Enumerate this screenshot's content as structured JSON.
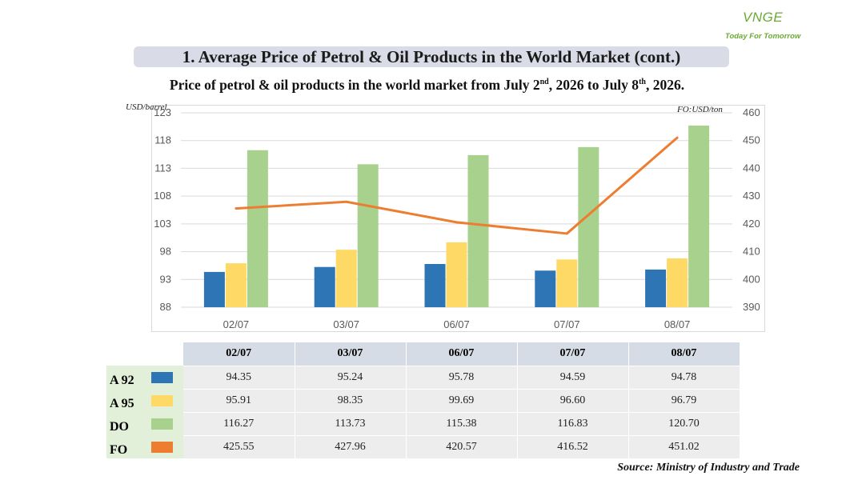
{
  "logo": {
    "word": "VNGE",
    "tagline": "Today For Tomorrow",
    "color": "#6aab32"
  },
  "header": {
    "title": "1. Average Price of Petrol & Oil Products in the World Market (cont.)"
  },
  "subtitle": {
    "part1": "Price of petrol & oil products in the world market from July 2",
    "sup1": "nd",
    "part2": ", 2026 to July 8",
    "sup2": "th",
    "part3": ", 2026."
  },
  "chart_data": {
    "type": "bar",
    "categories": [
      "02/07",
      "03/07",
      "06/07",
      "07/07",
      "08/07"
    ],
    "y_left": {
      "label": "USD/barrel",
      "ylim": [
        88,
        123
      ],
      "ticks": [
        88,
        93,
        98,
        103,
        108,
        113,
        118,
        123
      ]
    },
    "y_right": {
      "label": "FO:USD/ton",
      "ylim": [
        390,
        460
      ],
      "ticks": [
        390,
        400,
        410,
        420,
        430,
        440,
        450,
        460
      ]
    },
    "series": [
      {
        "name": "A 92",
        "type": "bar",
        "axis": "left",
        "color": "#2e75b6",
        "values": [
          94.35,
          95.24,
          95.78,
          94.59,
          94.78
        ]
      },
      {
        "name": "A 95",
        "type": "bar",
        "axis": "left",
        "color": "#ffd966",
        "values": [
          95.91,
          98.35,
          99.69,
          96.6,
          96.79
        ]
      },
      {
        "name": "DO",
        "type": "bar",
        "axis": "left",
        "color": "#a9d18e",
        "values": [
          116.27,
          113.73,
          115.38,
          116.83,
          120.7
        ]
      },
      {
        "name": "FO",
        "type": "line",
        "axis": "right",
        "color": "#ed7d31",
        "values": [
          425.55,
          427.96,
          420.57,
          416.52,
          451.02
        ]
      }
    ],
    "grid": true,
    "legend": "data-table"
  },
  "table": {
    "rows": [
      {
        "label": "A 92",
        "values": [
          "94.35",
          "95.24",
          "95.78",
          "94.59",
          "94.78"
        ]
      },
      {
        "label": "A 95",
        "values": [
          "95.91",
          "98.35",
          "99.69",
          "96.60",
          "96.79"
        ]
      },
      {
        "label": "DO",
        "values": [
          "116.27",
          "113.73",
          "115.38",
          "116.83",
          "120.70"
        ]
      },
      {
        "label": "FO",
        "values": [
          "425.55",
          "427.96",
          "420.57",
          "416.52",
          "451.02"
        ]
      }
    ]
  },
  "source": "Source: Ministry of Industry and Trade"
}
